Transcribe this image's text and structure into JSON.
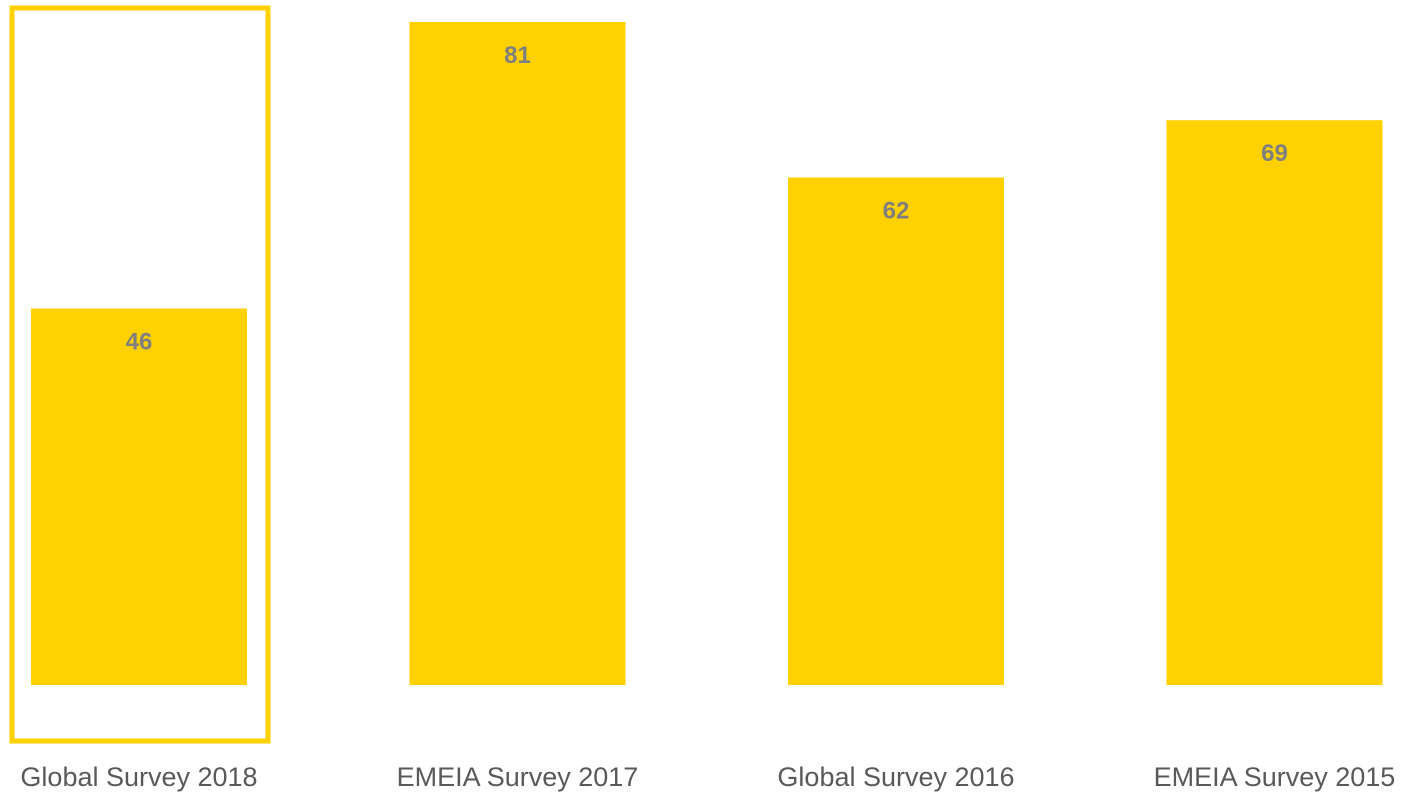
{
  "chart_data": {
    "type": "bar",
    "categories": [
      "Global Survey 2018",
      "EMEIA Survey 2017",
      "Global Survey 2016",
      "EMEIA Survey 2015"
    ],
    "values": [
      46,
      81,
      62,
      69
    ],
    "value_labels": [
      "46",
      "81",
      "62",
      "69"
    ],
    "title": "",
    "xlabel": "",
    "ylabel": "",
    "ylim": [
      0,
      82
    ],
    "grid": false,
    "legend": "none",
    "highlighted_category": "Global Survey 2018"
  },
  "colors": {
    "bar": "#FFD100",
    "highlight_border": "#FFD100",
    "value_label": "#7F7F7F",
    "category_label": "#595959",
    "background": "#FFFFFF"
  }
}
